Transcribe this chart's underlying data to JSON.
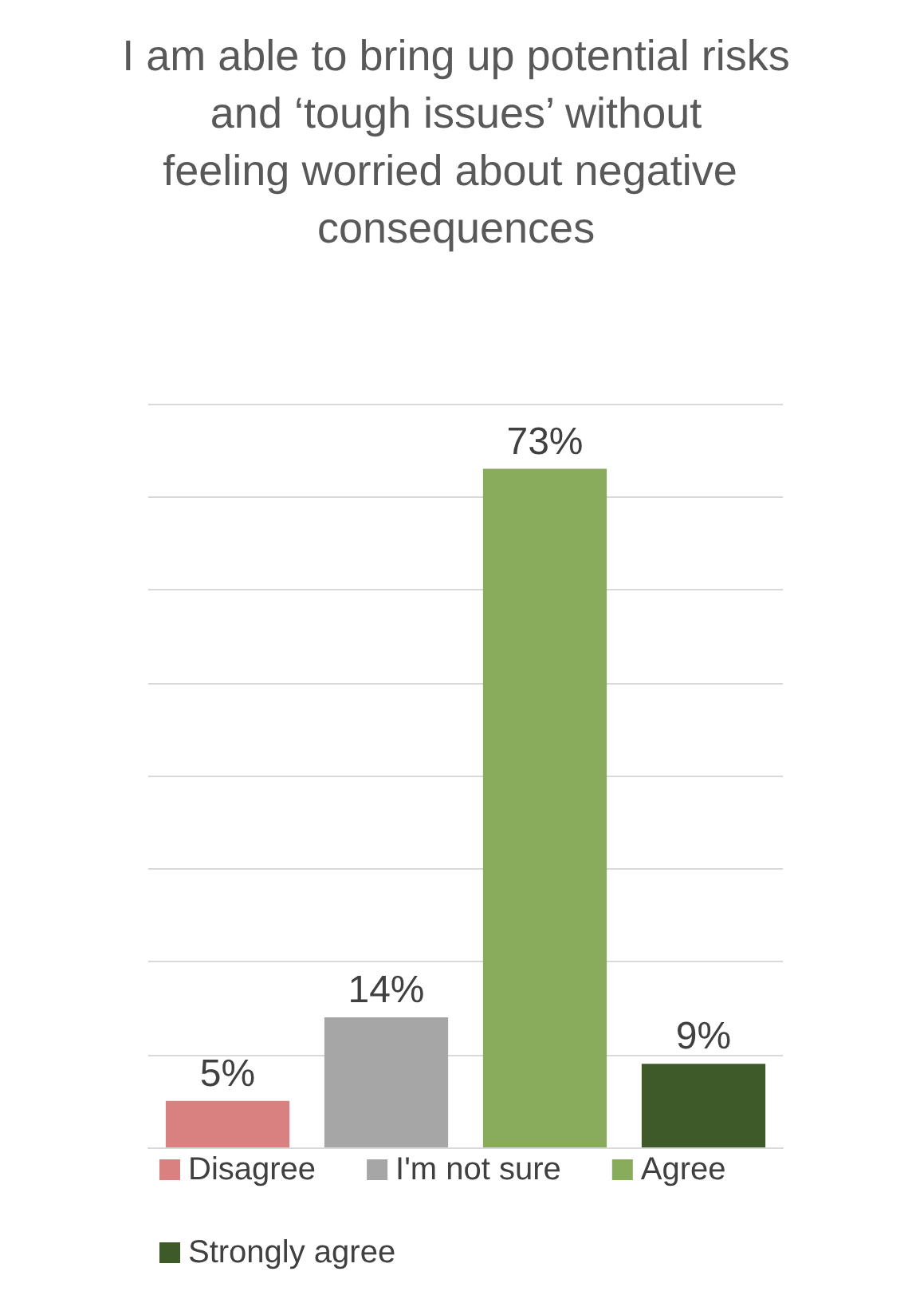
{
  "chart_data": {
    "type": "bar",
    "title": "I am able to bring up potential risks and ‘tough issues’ without feeling worried about negative consequences",
    "categories": [
      null,
      null,
      null,
      null
    ],
    "stacked": true,
    "series": [
      {
        "name": "Disagree",
        "color": "#d98080",
        "values": [
          5,
          null,
          null,
          null
        ],
        "value_labels": [
          "5%",
          null,
          null,
          null
        ]
      },
      {
        "name": "I'm not sure",
        "color": "#a6a6a6",
        "values": [
          null,
          14,
          null,
          null
        ],
        "value_labels": [
          null,
          "14%",
          null,
          null
        ]
      },
      {
        "name": "Agree",
        "color": "#88ab5c",
        "values": [
          null,
          null,
          73,
          null
        ],
        "value_labels": [
          null,
          null,
          "73%",
          null
        ]
      },
      {
        "name": "Strongly agree",
        "color": "#3d5a28",
        "values": [
          null,
          null,
          null,
          9
        ],
        "value_labels": [
          null,
          null,
          null,
          "9%"
        ]
      }
    ],
    "ylim": [
      0,
      80
    ],
    "yticks": [
      {
        "value": 0,
        "label": null
      },
      {
        "value": 10,
        "label": null
      },
      {
        "value": 20,
        "label": null
      },
      {
        "value": 30,
        "label": null
      },
      {
        "value": 40,
        "label": null
      },
      {
        "value": 50,
        "label": null
      },
      {
        "value": 60,
        "label": null
      },
      {
        "value": 70,
        "label": null
      },
      {
        "value": 80,
        "label": null
      }
    ],
    "grid": "y",
    "legend": "bottom",
    "tick_labels": false
  }
}
